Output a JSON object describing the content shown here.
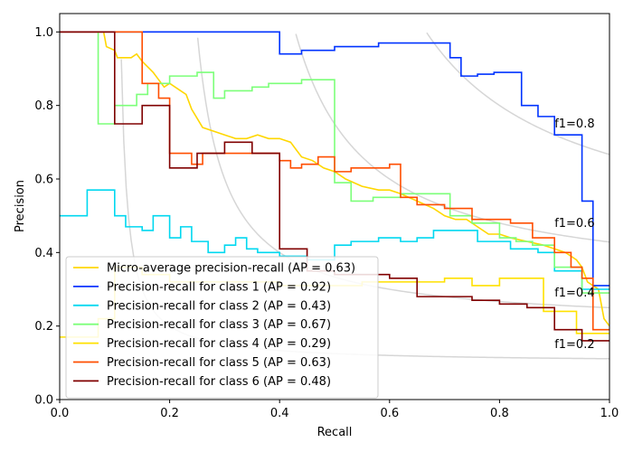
{
  "chart_data": {
    "type": "line",
    "title": "",
    "xlabel": "Recall",
    "ylabel": "Precision",
    "xlim": [
      0.0,
      1.0
    ],
    "ylim": [
      0.0,
      1.05
    ],
    "xticks": [
      0.0,
      0.2,
      0.4,
      0.6,
      0.8,
      1.0
    ],
    "xtick_labels": [
      "0.0",
      "0.2",
      "0.4",
      "0.6",
      "0.8",
      "1.0"
    ],
    "yticks": [
      0.0,
      0.2,
      0.4,
      0.6,
      0.8,
      1.0
    ],
    "ytick_labels": [
      "0.0",
      "0.2",
      "0.4",
      "0.6",
      "0.8",
      "1.0"
    ],
    "grid": false,
    "legend_position": "bottom-left",
    "iso_f1": [
      {
        "f1": 0.2,
        "label": "f1=0.2",
        "label_y": 0.14
      },
      {
        "f1": 0.4,
        "label": "f1=0.4",
        "label_y": 0.28
      },
      {
        "f1": 0.6,
        "label": "f1=0.6",
        "label_y": 0.47
      },
      {
        "f1": 0.8,
        "label": "f1=0.8",
        "label_y": 0.74
      }
    ],
    "series": [
      {
        "name": "Micro-average precision-recall (AP = 0.63)",
        "color": "#FFD700",
        "points": [
          [
            0.0,
            1.0
          ],
          [
            0.08,
            1.0
          ],
          [
            0.085,
            0.96
          ],
          [
            0.1,
            0.95
          ],
          [
            0.105,
            0.93
          ],
          [
            0.13,
            0.93
          ],
          [
            0.14,
            0.94
          ],
          [
            0.15,
            0.92
          ],
          [
            0.17,
            0.89
          ],
          [
            0.18,
            0.87
          ],
          [
            0.19,
            0.85
          ],
          [
            0.2,
            0.86
          ],
          [
            0.22,
            0.84
          ],
          [
            0.23,
            0.83
          ],
          [
            0.24,
            0.79
          ],
          [
            0.26,
            0.74
          ],
          [
            0.28,
            0.73
          ],
          [
            0.3,
            0.72
          ],
          [
            0.32,
            0.71
          ],
          [
            0.34,
            0.71
          ],
          [
            0.36,
            0.72
          ],
          [
            0.38,
            0.71
          ],
          [
            0.4,
            0.71
          ],
          [
            0.42,
            0.7
          ],
          [
            0.43,
            0.68
          ],
          [
            0.44,
            0.66
          ],
          [
            0.46,
            0.65
          ],
          [
            0.48,
            0.63
          ],
          [
            0.5,
            0.62
          ],
          [
            0.52,
            0.6
          ],
          [
            0.55,
            0.58
          ],
          [
            0.58,
            0.57
          ],
          [
            0.6,
            0.57
          ],
          [
            0.62,
            0.56
          ],
          [
            0.65,
            0.54
          ],
          [
            0.68,
            0.52
          ],
          [
            0.7,
            0.5
          ],
          [
            0.72,
            0.49
          ],
          [
            0.74,
            0.49
          ],
          [
            0.76,
            0.47
          ],
          [
            0.78,
            0.45
          ],
          [
            0.8,
            0.45
          ],
          [
            0.82,
            0.44
          ],
          [
            0.85,
            0.43
          ],
          [
            0.88,
            0.42
          ],
          [
            0.9,
            0.41
          ],
          [
            0.92,
            0.4
          ],
          [
            0.94,
            0.38
          ],
          [
            0.95,
            0.36
          ],
          [
            0.96,
            0.32
          ],
          [
            0.98,
            0.3
          ],
          [
            0.99,
            0.22
          ],
          [
            1.0,
            0.2
          ]
        ]
      },
      {
        "name": "Precision-recall for class 1 (AP = 0.92)",
        "color": "#0033FF",
        "points": [
          [
            0.0,
            1.0
          ],
          [
            0.4,
            1.0
          ],
          [
            0.4,
            0.94
          ],
          [
            0.44,
            0.94
          ],
          [
            0.44,
            0.95
          ],
          [
            0.5,
            0.95
          ],
          [
            0.5,
            0.96
          ],
          [
            0.58,
            0.96
          ],
          [
            0.58,
            0.97
          ],
          [
            0.71,
            0.97
          ],
          [
            0.71,
            0.93
          ],
          [
            0.73,
            0.93
          ],
          [
            0.73,
            0.88
          ],
          [
            0.76,
            0.88
          ],
          [
            0.76,
            0.885
          ],
          [
            0.79,
            0.885
          ],
          [
            0.79,
            0.89
          ],
          [
            0.84,
            0.89
          ],
          [
            0.84,
            0.8
          ],
          [
            0.87,
            0.8
          ],
          [
            0.87,
            0.77
          ],
          [
            0.9,
            0.77
          ],
          [
            0.9,
            0.72
          ],
          [
            0.95,
            0.72
          ],
          [
            0.95,
            0.54
          ],
          [
            0.97,
            0.54
          ],
          [
            0.97,
            0.31
          ],
          [
            1.0,
            0.31
          ]
        ]
      },
      {
        "name": "Precision-recall for class 2 (AP = 0.43)",
        "color": "#00D8F0",
        "points": [
          [
            0.0,
            0.5
          ],
          [
            0.05,
            0.5
          ],
          [
            0.05,
            0.57
          ],
          [
            0.1,
            0.57
          ],
          [
            0.1,
            0.5
          ],
          [
            0.12,
            0.5
          ],
          [
            0.12,
            0.47
          ],
          [
            0.15,
            0.47
          ],
          [
            0.15,
            0.46
          ],
          [
            0.17,
            0.46
          ],
          [
            0.17,
            0.5
          ],
          [
            0.2,
            0.5
          ],
          [
            0.2,
            0.44
          ],
          [
            0.22,
            0.44
          ],
          [
            0.22,
            0.47
          ],
          [
            0.24,
            0.47
          ],
          [
            0.24,
            0.43
          ],
          [
            0.27,
            0.43
          ],
          [
            0.27,
            0.4
          ],
          [
            0.3,
            0.4
          ],
          [
            0.3,
            0.42
          ],
          [
            0.32,
            0.42
          ],
          [
            0.32,
            0.44
          ],
          [
            0.34,
            0.44
          ],
          [
            0.34,
            0.41
          ],
          [
            0.36,
            0.41
          ],
          [
            0.36,
            0.4
          ],
          [
            0.4,
            0.4
          ],
          [
            0.4,
            0.39
          ],
          [
            0.45,
            0.39
          ],
          [
            0.45,
            0.38
          ],
          [
            0.5,
            0.38
          ],
          [
            0.5,
            0.42
          ],
          [
            0.53,
            0.42
          ],
          [
            0.53,
            0.43
          ],
          [
            0.58,
            0.43
          ],
          [
            0.58,
            0.44
          ],
          [
            0.62,
            0.44
          ],
          [
            0.62,
            0.43
          ],
          [
            0.65,
            0.43
          ],
          [
            0.65,
            0.44
          ],
          [
            0.68,
            0.44
          ],
          [
            0.68,
            0.46
          ],
          [
            0.76,
            0.46
          ],
          [
            0.76,
            0.43
          ],
          [
            0.82,
            0.43
          ],
          [
            0.82,
            0.41
          ],
          [
            0.87,
            0.41
          ],
          [
            0.87,
            0.4
          ],
          [
            0.9,
            0.4
          ],
          [
            0.9,
            0.35
          ],
          [
            0.95,
            0.35
          ],
          [
            0.95,
            0.3
          ],
          [
            1.0,
            0.3
          ]
        ]
      },
      {
        "name": "Precision-recall for class 3 (AP = 0.67)",
        "color": "#7CFF79",
        "points": [
          [
            0.07,
            1.0
          ],
          [
            0.07,
            0.75
          ],
          [
            0.1,
            0.75
          ],
          [
            0.1,
            0.8
          ],
          [
            0.14,
            0.8
          ],
          [
            0.14,
            0.83
          ],
          [
            0.16,
            0.83
          ],
          [
            0.16,
            0.86
          ],
          [
            0.2,
            0.86
          ],
          [
            0.2,
            0.88
          ],
          [
            0.25,
            0.88
          ],
          [
            0.25,
            0.89
          ],
          [
            0.28,
            0.89
          ],
          [
            0.28,
            0.82
          ],
          [
            0.3,
            0.82
          ],
          [
            0.3,
            0.84
          ],
          [
            0.35,
            0.84
          ],
          [
            0.35,
            0.85
          ],
          [
            0.38,
            0.85
          ],
          [
            0.38,
            0.86
          ],
          [
            0.44,
            0.86
          ],
          [
            0.44,
            0.87
          ],
          [
            0.5,
            0.87
          ],
          [
            0.5,
            0.59
          ],
          [
            0.53,
            0.59
          ],
          [
            0.53,
            0.54
          ],
          [
            0.57,
            0.54
          ],
          [
            0.57,
            0.55
          ],
          [
            0.62,
            0.55
          ],
          [
            0.62,
            0.56
          ],
          [
            0.71,
            0.56
          ],
          [
            0.71,
            0.5
          ],
          [
            0.75,
            0.5
          ],
          [
            0.75,
            0.48
          ],
          [
            0.8,
            0.48
          ],
          [
            0.8,
            0.44
          ],
          [
            0.83,
            0.44
          ],
          [
            0.83,
            0.43
          ],
          [
            0.86,
            0.43
          ],
          [
            0.86,
            0.42
          ],
          [
            0.9,
            0.42
          ],
          [
            0.9,
            0.36
          ],
          [
            0.95,
            0.36
          ],
          [
            0.95,
            0.29
          ],
          [
            1.0,
            0.29
          ]
        ]
      },
      {
        "name": "Precision-recall for class 4 (AP = 0.29)",
        "color": "#FFE100",
        "points": [
          [
            0.0,
            0.17
          ],
          [
            0.07,
            0.17
          ],
          [
            0.07,
            0.22
          ],
          [
            0.1,
            0.22
          ],
          [
            0.1,
            0.36
          ],
          [
            0.15,
            0.36
          ],
          [
            0.15,
            0.34
          ],
          [
            0.2,
            0.34
          ],
          [
            0.2,
            0.32
          ],
          [
            0.4,
            0.32
          ],
          [
            0.4,
            0.31
          ],
          [
            0.55,
            0.31
          ],
          [
            0.55,
            0.32
          ],
          [
            0.7,
            0.32
          ],
          [
            0.7,
            0.33
          ],
          [
            0.75,
            0.33
          ],
          [
            0.75,
            0.31
          ],
          [
            0.8,
            0.31
          ],
          [
            0.8,
            0.33
          ],
          [
            0.88,
            0.33
          ],
          [
            0.88,
            0.24
          ],
          [
            0.94,
            0.24
          ],
          [
            0.94,
            0.18
          ],
          [
            1.0,
            0.18
          ]
        ]
      },
      {
        "name": "Precision-recall for class 5 (AP = 0.63)",
        "color": "#FF4E00",
        "points": [
          [
            0.0,
            1.0
          ],
          [
            0.15,
            1.0
          ],
          [
            0.15,
            0.86
          ],
          [
            0.18,
            0.86
          ],
          [
            0.18,
            0.82
          ],
          [
            0.2,
            0.82
          ],
          [
            0.2,
            0.67
          ],
          [
            0.24,
            0.67
          ],
          [
            0.24,
            0.64
          ],
          [
            0.26,
            0.64
          ],
          [
            0.26,
            0.67
          ],
          [
            0.4,
            0.67
          ],
          [
            0.4,
            0.65
          ],
          [
            0.42,
            0.65
          ],
          [
            0.42,
            0.63
          ],
          [
            0.44,
            0.63
          ],
          [
            0.44,
            0.64
          ],
          [
            0.47,
            0.64
          ],
          [
            0.47,
            0.66
          ],
          [
            0.5,
            0.66
          ],
          [
            0.5,
            0.62
          ],
          [
            0.53,
            0.62
          ],
          [
            0.53,
            0.63
          ],
          [
            0.6,
            0.63
          ],
          [
            0.6,
            0.64
          ],
          [
            0.62,
            0.64
          ],
          [
            0.62,
            0.55
          ],
          [
            0.65,
            0.55
          ],
          [
            0.65,
            0.53
          ],
          [
            0.7,
            0.53
          ],
          [
            0.7,
            0.52
          ],
          [
            0.75,
            0.52
          ],
          [
            0.75,
            0.49
          ],
          [
            0.8,
            0.49
          ],
          [
            0.8,
            0.49
          ],
          [
            0.82,
            0.49
          ],
          [
            0.82,
            0.48
          ],
          [
            0.86,
            0.48
          ],
          [
            0.86,
            0.44
          ],
          [
            0.9,
            0.44
          ],
          [
            0.9,
            0.4
          ],
          [
            0.93,
            0.4
          ],
          [
            0.93,
            0.36
          ],
          [
            0.95,
            0.36
          ],
          [
            0.95,
            0.33
          ],
          [
            0.97,
            0.33
          ],
          [
            0.97,
            0.19
          ],
          [
            1.0,
            0.19
          ]
        ]
      },
      {
        "name": "Precision-recall for class 6 (AP = 0.48)",
        "color": "#800000",
        "points": [
          [
            0.0,
            1.0
          ],
          [
            0.1,
            1.0
          ],
          [
            0.1,
            0.75
          ],
          [
            0.15,
            0.75
          ],
          [
            0.15,
            0.8
          ],
          [
            0.2,
            0.8
          ],
          [
            0.2,
            0.63
          ],
          [
            0.25,
            0.63
          ],
          [
            0.25,
            0.67
          ],
          [
            0.3,
            0.67
          ],
          [
            0.3,
            0.7
          ],
          [
            0.35,
            0.7
          ],
          [
            0.35,
            0.67
          ],
          [
            0.4,
            0.67
          ],
          [
            0.4,
            0.41
          ],
          [
            0.45,
            0.41
          ],
          [
            0.45,
            0.35
          ],
          [
            0.5,
            0.35
          ],
          [
            0.5,
            0.34
          ],
          [
            0.6,
            0.34
          ],
          [
            0.6,
            0.33
          ],
          [
            0.65,
            0.33
          ],
          [
            0.65,
            0.28
          ],
          [
            0.75,
            0.28
          ],
          [
            0.75,
            0.27
          ],
          [
            0.8,
            0.27
          ],
          [
            0.8,
            0.26
          ],
          [
            0.85,
            0.26
          ],
          [
            0.85,
            0.25
          ],
          [
            0.9,
            0.25
          ],
          [
            0.9,
            0.19
          ],
          [
            0.95,
            0.19
          ],
          [
            0.95,
            0.16
          ],
          [
            1.0,
            0.16
          ]
        ]
      }
    ]
  }
}
